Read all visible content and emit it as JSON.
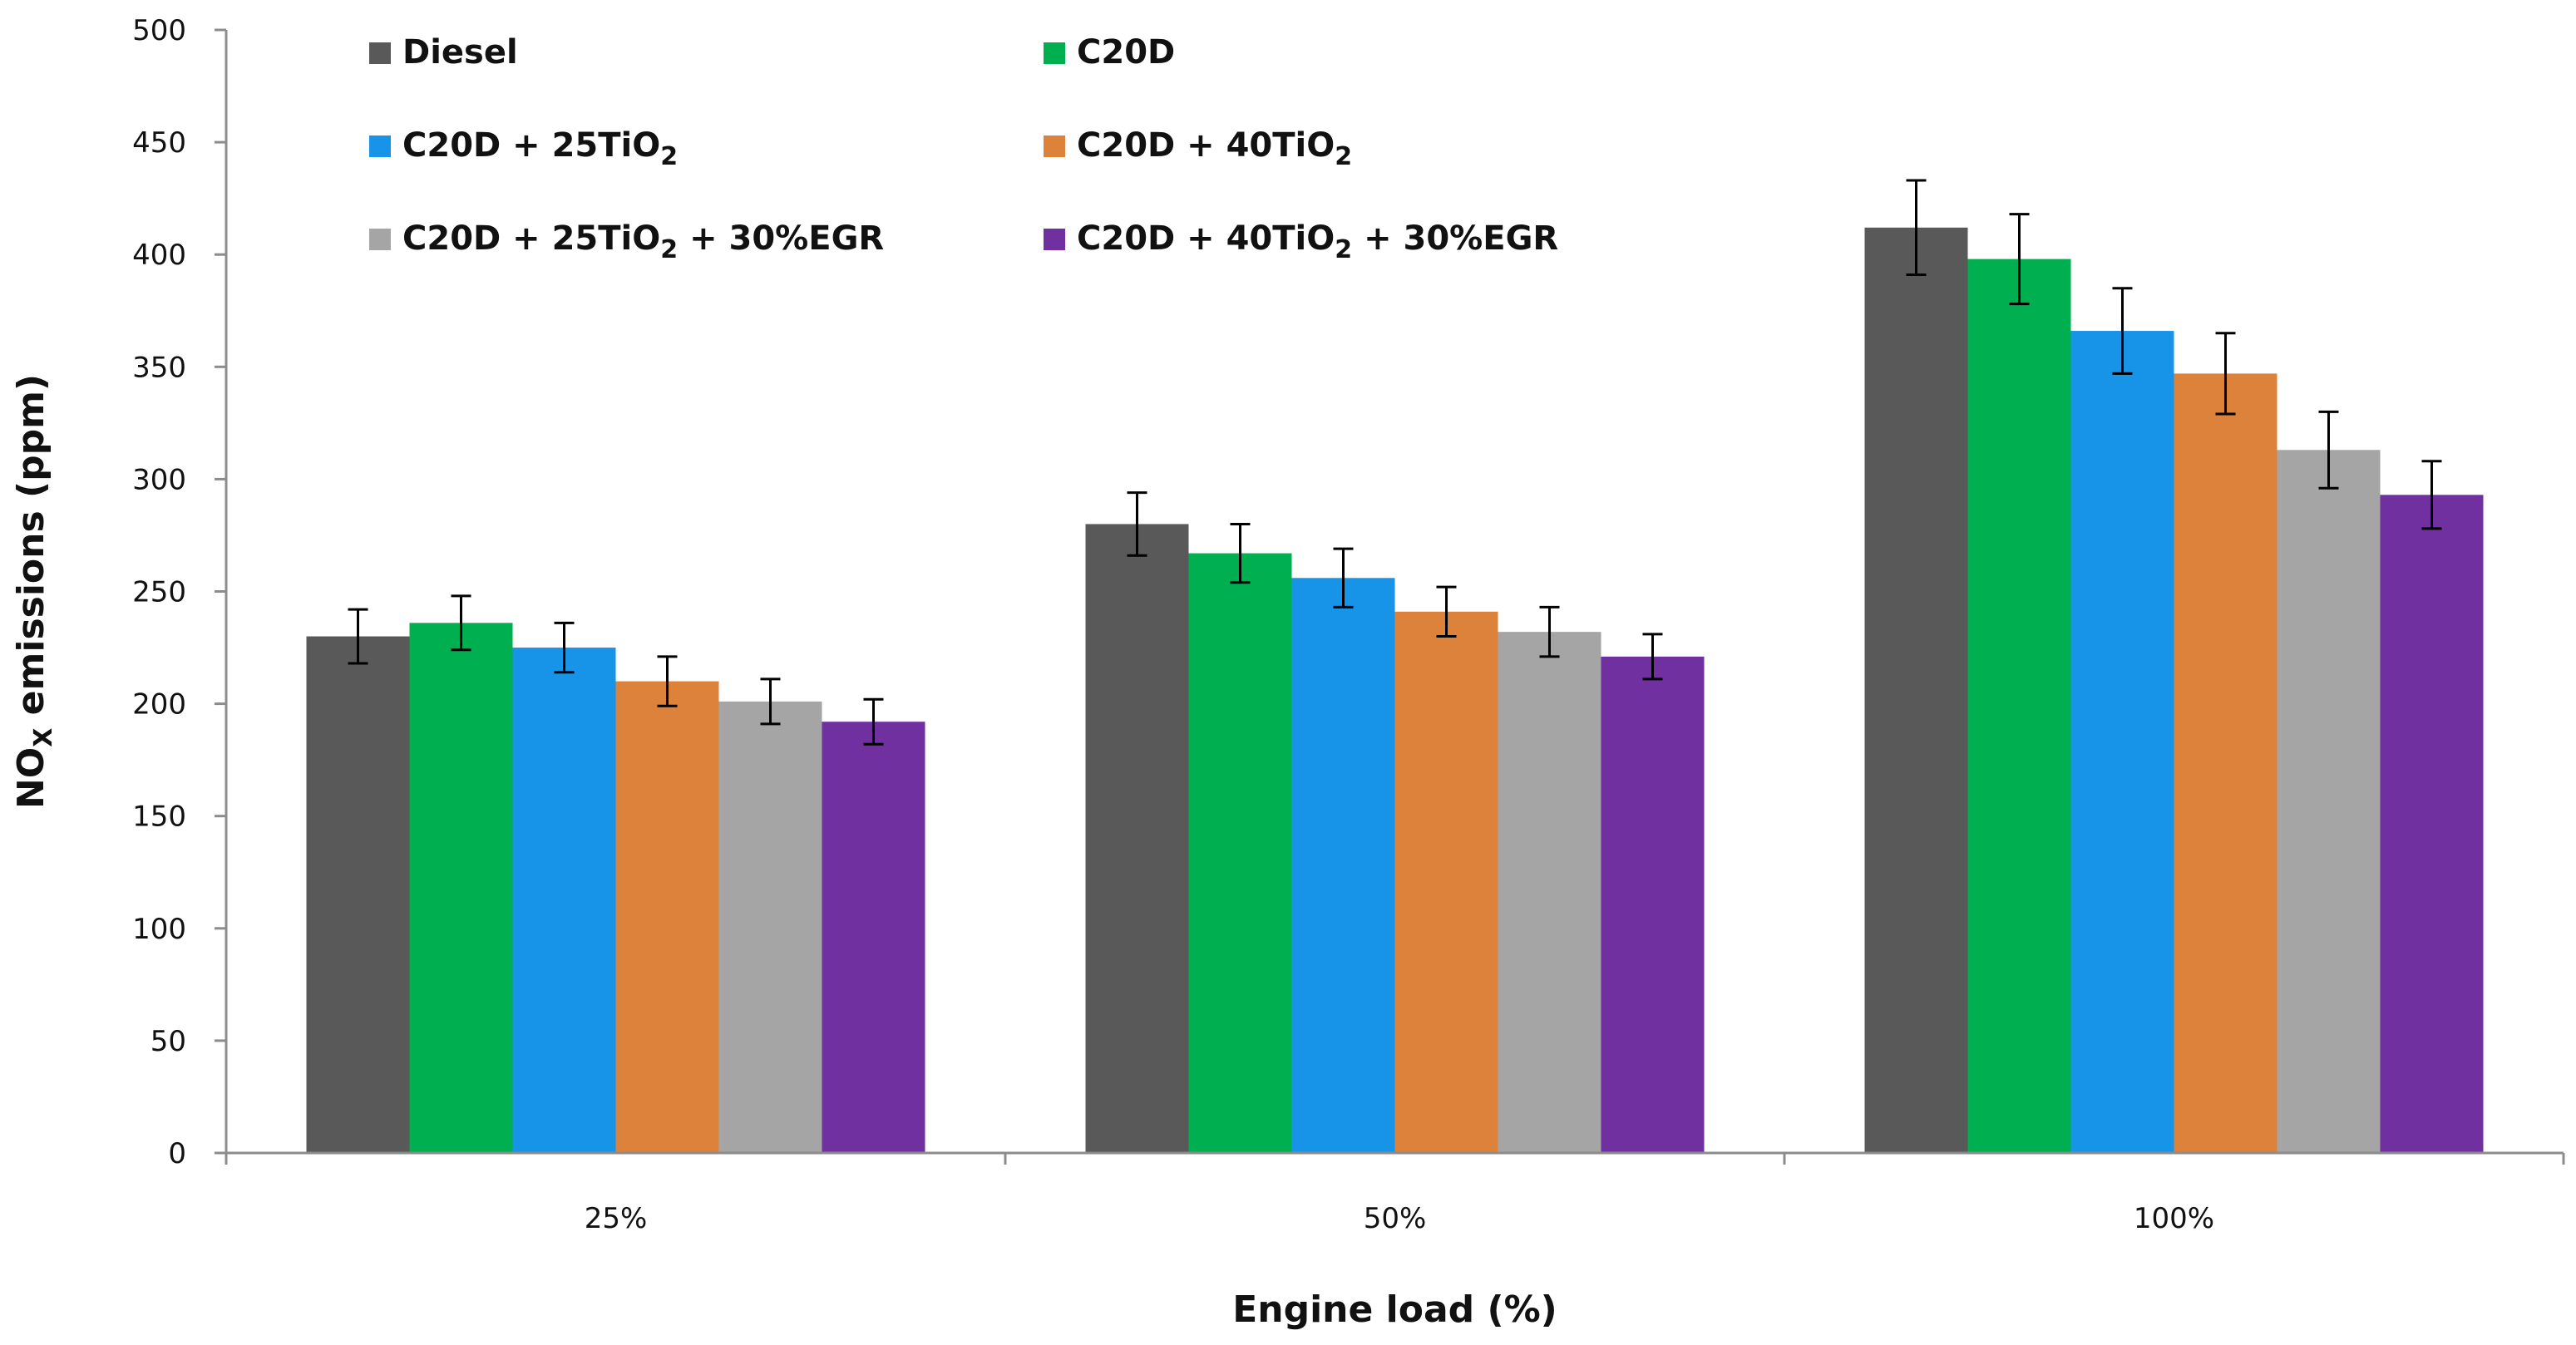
{
  "chart_data": {
    "type": "bar",
    "title": "",
    "xlabel": "Engine load (%)",
    "ylabel": "NOx emissions (ppm)",
    "ylabel_parts": {
      "main": "NO",
      "sub": "X",
      "rest": " emissions (ppm)"
    },
    "ylim": [
      0,
      500
    ],
    "yticks": [
      0,
      50,
      100,
      150,
      200,
      250,
      300,
      350,
      400,
      450,
      500
    ],
    "categories": [
      "25%",
      "50%",
      "100%"
    ],
    "grid": false,
    "legend_position": "top-left (inside plot)",
    "series": [
      {
        "name": "Diesel",
        "legend_parts": [
          "Diesel"
        ],
        "color": "#595959",
        "values": [
          230,
          280,
          412
        ],
        "errors": [
          12,
          14,
          21
        ]
      },
      {
        "name": "C20D",
        "legend_parts": [
          "C20D"
        ],
        "color": "#00b050",
        "values": [
          236,
          267,
          398
        ],
        "errors": [
          12,
          13,
          20
        ]
      },
      {
        "name": "C20D + 25TiO2",
        "legend_parts": [
          "C20D + 25TiO",
          "2",
          ""
        ],
        "color": "#1793e8",
        "values": [
          225,
          256,
          366
        ],
        "errors": [
          11,
          13,
          19
        ]
      },
      {
        "name": "C20D + 40TiO2",
        "legend_parts": [
          "C20D + 40TiO",
          "2",
          ""
        ],
        "color": "#dd823b",
        "values": [
          210,
          241,
          347
        ],
        "errors": [
          11,
          11,
          18
        ]
      },
      {
        "name": "C20D + 25TiO2 + 30%EGR",
        "legend_parts": [
          "C20D + 25TiO",
          "2",
          " + 30%EGR"
        ],
        "color": "#a5a5a5",
        "values": [
          201,
          232,
          313
        ],
        "errors": [
          10,
          11,
          17
        ]
      },
      {
        "name": "C20D + 40TiO2 + 30%EGR",
        "legend_parts": [
          "C20D + 40TiO",
          "2",
          " + 30%EGR"
        ],
        "color": "#7030a0",
        "values": [
          192,
          221,
          293
        ],
        "errors": [
          10,
          10,
          15
        ]
      }
    ]
  }
}
